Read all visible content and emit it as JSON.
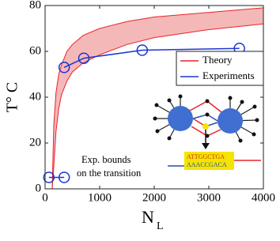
{
  "chart_data": {
    "type": "line",
    "xlabel": "N",
    "xlabel_subscript": "L",
    "ylabel": "T° C",
    "xlim": [
      0,
      4000
    ],
    "xticks": [
      0,
      1000,
      2000,
      3000,
      4000
    ],
    "ylim": [
      0,
      80
    ],
    "yticks": [
      0,
      20,
      40,
      60,
      80
    ],
    "legend": "upper right",
    "series": [
      {
        "name": "Theory",
        "color": "#e8232a",
        "fill": "#f5b8b8",
        "x": [
          130,
          160,
          200,
          250,
          300,
          400,
          500,
          700,
          1000,
          1500,
          2000,
          3000,
          4000
        ],
        "values": [
          0,
          10,
          25,
          35,
          41,
          47,
          51,
          55,
          58.5,
          63,
          66,
          69.5,
          72
        ],
        "upper": [
          0,
          28,
          42,
          50,
          54,
          60,
          63,
          67,
          70,
          73,
          75,
          77,
          79
        ]
      },
      {
        "name": "Experiments",
        "color": "#1a35d6",
        "marker": "circle",
        "x": [
          350,
          710,
          1780,
          3560
        ],
        "values": [
          53,
          57,
          60.5,
          61.3
        ]
      }
    ],
    "annotation": {
      "lines": [
        "Exp. bounds",
        "on the transition"
      ],
      "color": "#1a35d6",
      "x": [
        70,
        350
      ],
      "y": [
        5,
        5
      ]
    },
    "inset": {
      "top": "ATTGGCTGA",
      "bottom": "AAACCGACA"
    }
  }
}
